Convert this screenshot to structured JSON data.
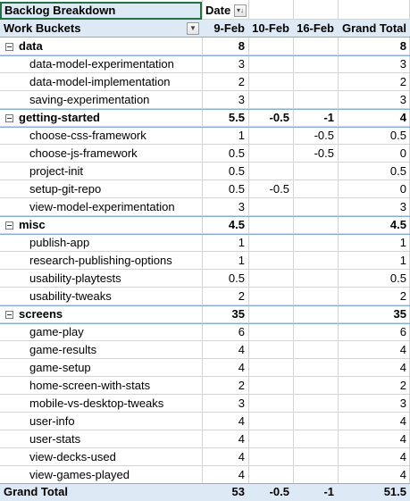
{
  "pivot": {
    "title": "Backlog Breakdown",
    "column_field": "Date",
    "row_field": "Work Buckets",
    "columns": [
      "9-Feb",
      "10-Feb",
      "16-Feb",
      "Grand Total"
    ],
    "groups": [
      {
        "name": "data",
        "values": [
          "8",
          "",
          "",
          "8"
        ],
        "items": [
          {
            "name": "data-model-experimentation",
            "values": [
              "3",
              "",
              "",
              "3"
            ]
          },
          {
            "name": "data-model-implementation",
            "values": [
              "2",
              "",
              "",
              "2"
            ]
          },
          {
            "name": "saving-experimentation",
            "values": [
              "3",
              "",
              "",
              "3"
            ]
          }
        ]
      },
      {
        "name": "getting-started",
        "values": [
          "5.5",
          "-0.5",
          "-1",
          "4"
        ],
        "items": [
          {
            "name": "choose-css-framework",
            "values": [
              "1",
              "",
              "-0.5",
              "0.5"
            ]
          },
          {
            "name": "choose-js-framework",
            "values": [
              "0.5",
              "",
              "-0.5",
              "0"
            ]
          },
          {
            "name": "project-init",
            "values": [
              "0.5",
              "",
              "",
              "0.5"
            ]
          },
          {
            "name": "setup-git-repo",
            "values": [
              "0.5",
              "-0.5",
              "",
              "0"
            ]
          },
          {
            "name": "view-model-experimentation",
            "values": [
              "3",
              "",
              "",
              "3"
            ]
          }
        ]
      },
      {
        "name": "misc",
        "values": [
          "4.5",
          "",
          "",
          "4.5"
        ],
        "items": [
          {
            "name": "publish-app",
            "values": [
              "1",
              "",
              "",
              "1"
            ]
          },
          {
            "name": "research-publishing-options",
            "values": [
              "1",
              "",
              "",
              "1"
            ]
          },
          {
            "name": "usability-playtests",
            "values": [
              "0.5",
              "",
              "",
              "0.5"
            ]
          },
          {
            "name": "usability-tweaks",
            "values": [
              "2",
              "",
              "",
              "2"
            ]
          }
        ]
      },
      {
        "name": "screens",
        "values": [
          "35",
          "",
          "",
          "35"
        ],
        "items": [
          {
            "name": "game-play",
            "values": [
              "6",
              "",
              "",
              "6"
            ]
          },
          {
            "name": "game-results",
            "values": [
              "4",
              "",
              "",
              "4"
            ]
          },
          {
            "name": "game-setup",
            "values": [
              "4",
              "",
              "",
              "4"
            ]
          },
          {
            "name": "home-screen-with-stats",
            "values": [
              "2",
              "",
              "",
              "2"
            ]
          },
          {
            "name": "mobile-vs-desktop-tweaks",
            "values": [
              "3",
              "",
              "",
              "3"
            ]
          },
          {
            "name": "user-info",
            "values": [
              "4",
              "",
              "",
              "4"
            ]
          },
          {
            "name": "user-stats",
            "values": [
              "4",
              "",
              "",
              "4"
            ]
          },
          {
            "name": "view-decks-used",
            "values": [
              "4",
              "",
              "",
              "4"
            ]
          },
          {
            "name": "view-games-played",
            "values": [
              "4",
              "",
              "",
              "4"
            ]
          }
        ]
      }
    ],
    "grand_total": {
      "label": "Grand Total",
      "values": [
        "53",
        "-0.5",
        "-1",
        "51.5"
      ]
    }
  },
  "icons": {
    "date_filter": "filter-sort-icon",
    "row_filter": "dropdown-arrow-icon",
    "group_toggle": "collapse-minus-icon"
  },
  "colors": {
    "header_fill": "#dde9f5",
    "header_border": "#8eaadb",
    "selection_border": "#217346",
    "gridline": "#d4d4d4"
  }
}
